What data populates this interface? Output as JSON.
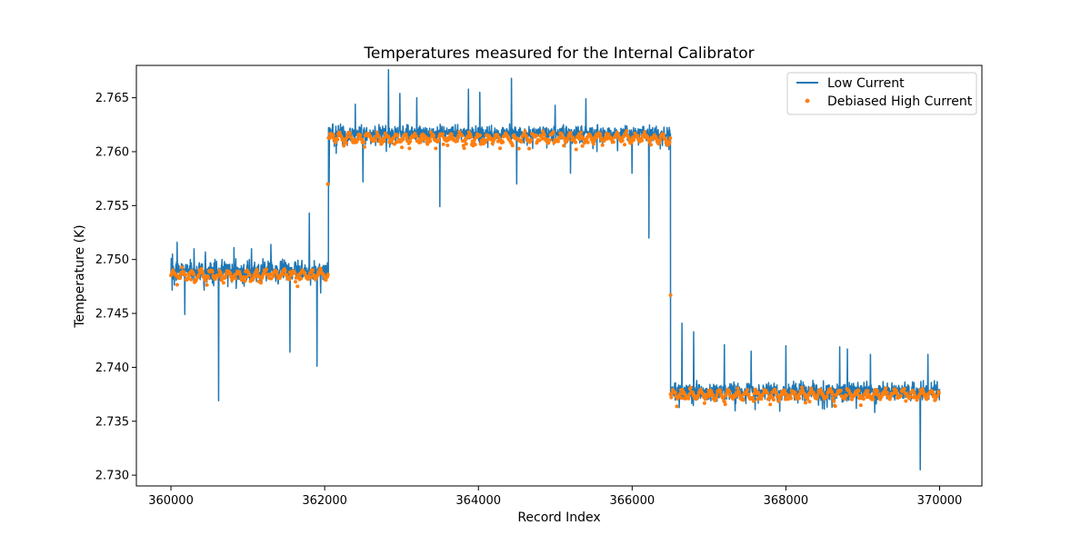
{
  "chart_data": {
    "type": "line",
    "title": "Temperatures measured for the Internal Calibrator",
    "xlabel": "Record Index",
    "ylabel": "Temperature (K)",
    "xlim": [
      359550,
      370550
    ],
    "ylim": [
      2.729,
      2.768
    ],
    "x_ticks": [
      360000,
      362000,
      364000,
      366000,
      368000,
      370000
    ],
    "x_tick_labels": [
      "360000",
      "362000",
      "364000",
      "366000",
      "368000",
      "370000"
    ],
    "y_ticks": [
      2.73,
      2.735,
      2.74,
      2.745,
      2.75,
      2.755,
      2.76,
      2.765
    ],
    "y_tick_labels": [
      "2.730",
      "2.735",
      "2.740",
      "2.745",
      "2.750",
      "2.755",
      "2.760",
      "2.765"
    ],
    "grid": false,
    "legend_position": "top-right",
    "segments": [
      {
        "x_start": 360000,
        "x_end": 362050,
        "low_current_mean": 2.749,
        "low_current_noise": 0.001,
        "high_current_mean": 2.7486
      },
      {
        "x_start": 362050,
        "x_end": 366500,
        "low_current_mean": 2.7617,
        "low_current_noise": 0.0008,
        "high_current_mean": 2.7613
      },
      {
        "x_start": 366500,
        "x_end": 370000,
        "low_current_mean": 2.7378,
        "low_current_noise": 0.0009,
        "high_current_mean": 2.7375
      }
    ],
    "low_current_spikes": [
      {
        "x": 360020,
        "y": 2.7505
      },
      {
        "x": 360080,
        "y": 2.7516
      },
      {
        "x": 360180,
        "y": 2.7449
      },
      {
        "x": 360300,
        "y": 2.751
      },
      {
        "x": 360450,
        "y": 2.7507
      },
      {
        "x": 360620,
        "y": 2.7369
      },
      {
        "x": 360820,
        "y": 2.7511
      },
      {
        "x": 361050,
        "y": 2.751
      },
      {
        "x": 361300,
        "y": 2.7514
      },
      {
        "x": 361550,
        "y": 2.7414
      },
      {
        "x": 361800,
        "y": 2.7543
      },
      {
        "x": 361900,
        "y": 2.7401
      },
      {
        "x": 361950,
        "y": 2.7469
      },
      {
        "x": 362060,
        "y": 2.7569
      },
      {
        "x": 362400,
        "y": 2.7644
      },
      {
        "x": 362500,
        "y": 2.7572
      },
      {
        "x": 362830,
        "y": 2.7676
      },
      {
        "x": 362980,
        "y": 2.7654
      },
      {
        "x": 363200,
        "y": 2.765
      },
      {
        "x": 363500,
        "y": 2.7549
      },
      {
        "x": 363870,
        "y": 2.7658
      },
      {
        "x": 364020,
        "y": 2.7655
      },
      {
        "x": 364430,
        "y": 2.7668
      },
      {
        "x": 364500,
        "y": 2.757
      },
      {
        "x": 365000,
        "y": 2.7643
      },
      {
        "x": 365200,
        "y": 2.758
      },
      {
        "x": 365400,
        "y": 2.7649
      },
      {
        "x": 366000,
        "y": 2.758
      },
      {
        "x": 366220,
        "y": 2.752
      },
      {
        "x": 366650,
        "y": 2.7441
      },
      {
        "x": 366800,
        "y": 2.7433
      },
      {
        "x": 367200,
        "y": 2.7421
      },
      {
        "x": 367550,
        "y": 2.7415
      },
      {
        "x": 368000,
        "y": 2.742
      },
      {
        "x": 368700,
        "y": 2.7419
      },
      {
        "x": 368800,
        "y": 2.7417
      },
      {
        "x": 369100,
        "y": 2.7412
      },
      {
        "x": 369750,
        "y": 2.7305
      },
      {
        "x": 369850,
        "y": 2.7412
      }
    ],
    "high_current_outliers": [
      {
        "x": 362040,
        "y": 2.757
      },
      {
        "x": 366500,
        "y": 2.7467
      }
    ],
    "series": [
      {
        "name": "Low Current",
        "color": "#1f77b4",
        "style": "line"
      },
      {
        "name": "Debiased High Current",
        "color": "#ff7f0e",
        "style": "points"
      }
    ]
  }
}
